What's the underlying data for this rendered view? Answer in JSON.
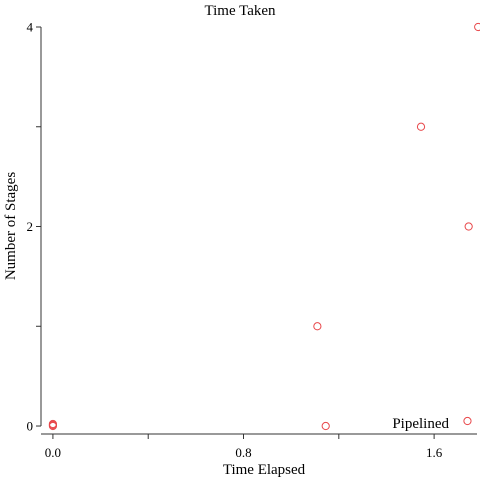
{
  "chart_data": {
    "type": "scatter",
    "title": "Time Taken",
    "xlabel": "Time Elapsed",
    "ylabel": "Number of Stages",
    "xlim": [
      -0.05,
      1.78
    ],
    "ylim": [
      -0.08,
      4.0
    ],
    "x_ticks": [
      0.0,
      0.4,
      0.8,
      1.2,
      1.6
    ],
    "x_tick_labels": [
      "0.0",
      "",
      "0.8",
      "",
      "1.6"
    ],
    "y_ticks": [
      0,
      1,
      2,
      3,
      4
    ],
    "y_tick_labels": [
      "0",
      "",
      "2",
      "",
      "4"
    ],
    "grid": false,
    "legend_position": "bottom-right",
    "series": [
      {
        "name": "Pipelined",
        "color": "#e8474a",
        "points": [
          {
            "x": 0.0,
            "y": 0.0
          },
          {
            "x": 0.0,
            "y": 0.01
          },
          {
            "x": 0.0,
            "y": 0.02
          },
          {
            "x": 1.11,
            "y": 1.0
          },
          {
            "x": 1.145,
            "y": 0.0
          },
          {
            "x": 1.545,
            "y": 3.0
          },
          {
            "x": 1.745,
            "y": 2.0
          },
          {
            "x": 1.74,
            "y": 0.05
          },
          {
            "x": 1.785,
            "y": 4.0
          }
        ]
      }
    ]
  }
}
